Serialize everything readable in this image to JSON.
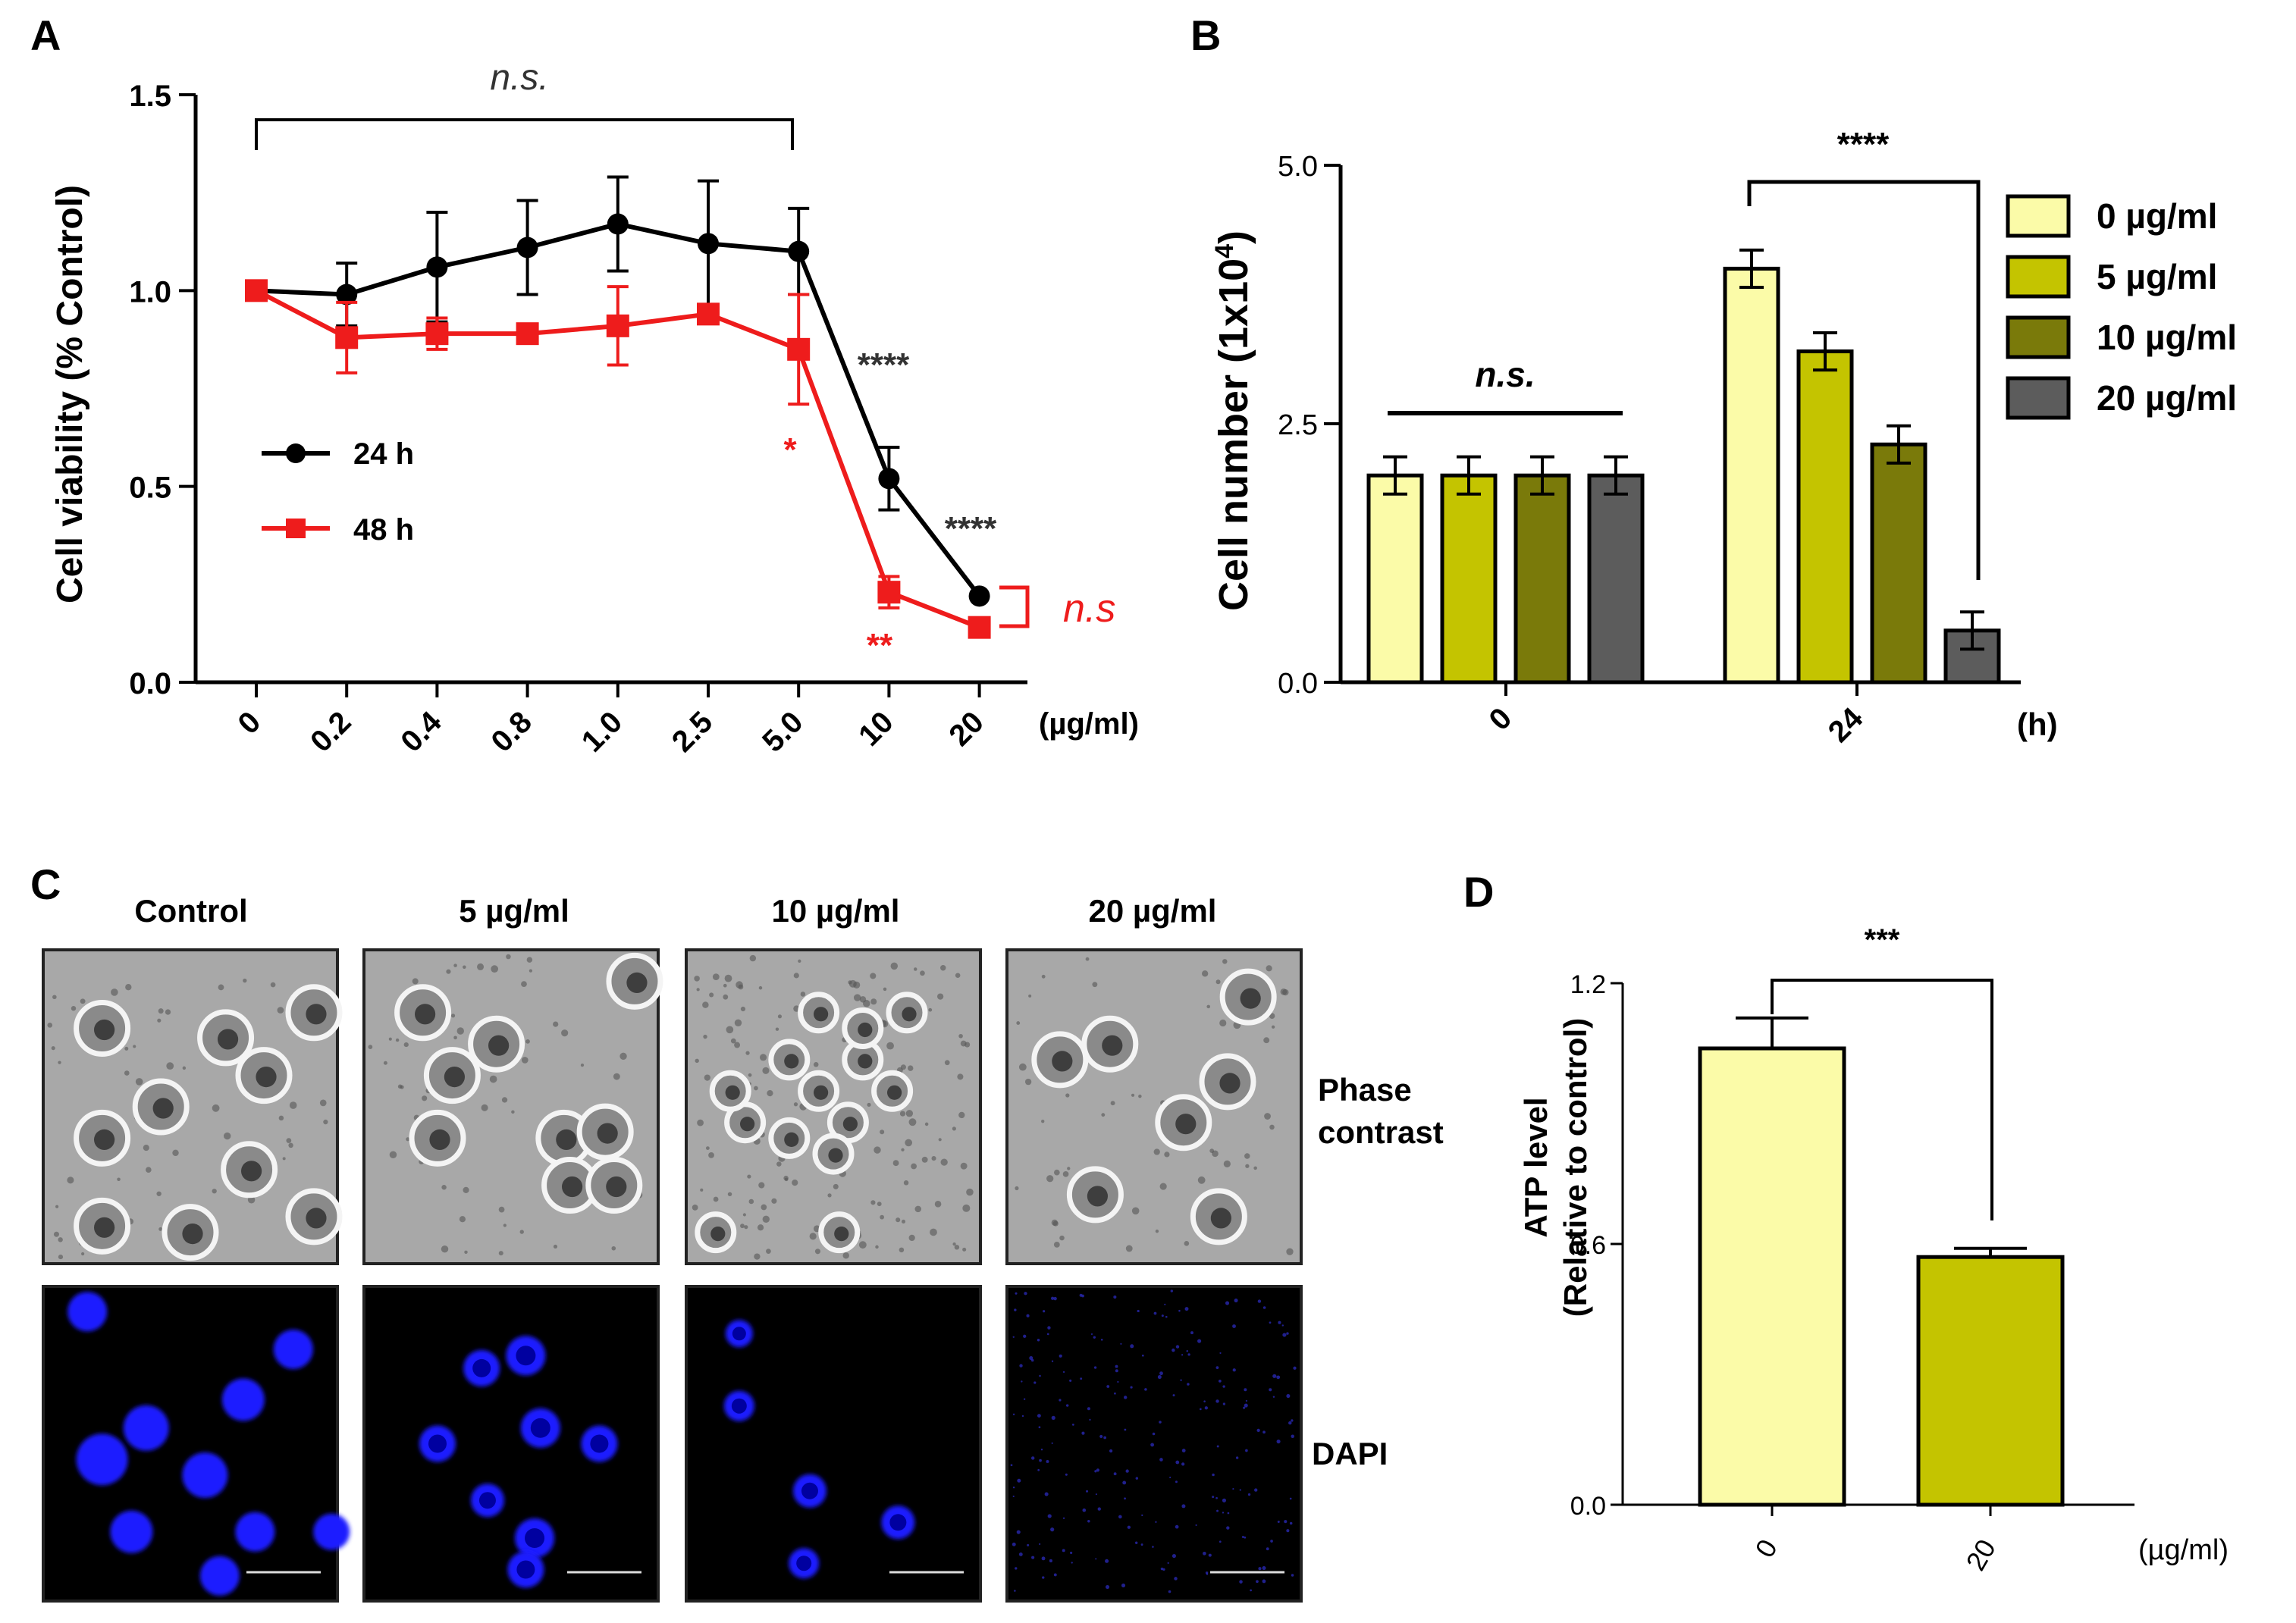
{
  "panels": {
    "A": "A",
    "B": "B",
    "C": "C",
    "D": "D"
  },
  "colors": {
    "black": "#000000",
    "red": "#ee1c1c",
    "c0": "#fbfba8",
    "c5": "#c4c400",
    "c10": "#7a7a0a",
    "c20": "#5c5c5c",
    "dapi": "#1a1aff"
  },
  "chart_data": [
    {
      "panel": "A",
      "type": "line",
      "ylabel": "Cell viability (% Control)",
      "xunit": "(µg/ml)",
      "ylim": [
        0.0,
        1.5
      ],
      "yticks": [
        "0.0",
        "0.5",
        "1.0",
        "1.5"
      ],
      "categories": [
        "0",
        "0.2",
        "0.4",
        "0.8",
        "1.0",
        "2.5",
        "5.0",
        "10",
        "20"
      ],
      "series": [
        {
          "name": "24 h",
          "color": "#000000",
          "marker": "circle",
          "values": [
            1.0,
            0.99,
            1.06,
            1.11,
            1.17,
            1.12,
            1.1,
            0.52,
            0.22
          ],
          "errors": [
            0.02,
            0.08,
            0.14,
            0.12,
            0.12,
            0.16,
            0.11,
            0.08,
            0.02
          ]
        },
        {
          "name": "48 h",
          "color": "#ee1c1c",
          "marker": "square",
          "values": [
            1.0,
            0.88,
            0.89,
            0.89,
            0.91,
            0.94,
            0.85,
            0.23,
            0.14
          ],
          "errors": [
            0.02,
            0.09,
            0.04,
            0.02,
            0.1,
            0.02,
            0.14,
            0.04,
            0.02
          ]
        }
      ],
      "annotations": {
        "ns_top": "n.s.",
        "star24_10": "****",
        "star24_20": "****",
        "star48_5": "*",
        "star48_10": "**",
        "ns_right": "n.s"
      }
    },
    {
      "panel": "B",
      "type": "bar",
      "ylabel_main": "Cell number (1x10",
      "ylabel_sup": "4",
      "ylabel_close": ")",
      "xunit": "(h)",
      "ylim": [
        0.0,
        5.0
      ],
      "yticks": [
        "0.0",
        "2.5",
        "5.0"
      ],
      "categories": [
        "0",
        "24"
      ],
      "series": [
        {
          "name": "0 µg/ml",
          "color": "#fbfba8",
          "values": [
            2.0,
            4.0
          ],
          "errors": [
            0.18,
            0.18
          ]
        },
        {
          "name": "5 µg/ml",
          "color": "#c4c400",
          "values": [
            2.0,
            3.2
          ],
          "errors": [
            0.18,
            0.18
          ]
        },
        {
          "name": "10 µg/ml",
          "color": "#7a7a0a",
          "values": [
            2.0,
            2.3
          ],
          "errors": [
            0.18,
            0.18
          ]
        },
        {
          "name": "20 µg/ml",
          "color": "#5c5c5c",
          "values": [
            2.0,
            0.5
          ],
          "errors": [
            0.18,
            0.18
          ]
        }
      ],
      "annotations": {
        "ns": "n.s.",
        "sig": "****"
      }
    },
    {
      "panel": "D",
      "type": "bar",
      "ylabel_line1": "ATP level",
      "ylabel_line2": "(Relative to control)",
      "xunit": "(µg/ml)",
      "ylim": [
        0.0,
        1.2
      ],
      "yticks": [
        "0.0",
        "0.6",
        "1.2"
      ],
      "categories": [
        "0",
        "20"
      ],
      "values": [
        1.05,
        0.57
      ],
      "errors": [
        0.07,
        0.02
      ],
      "colors": [
        "#fbfba8",
        "#c4c400"
      ],
      "annotations": {
        "sig": "***"
      }
    }
  ],
  "panelC": {
    "columns": [
      "Control",
      "5 µg/ml",
      "10 µg/ml",
      "20 µg/ml"
    ],
    "rows": [
      "Phase contrast",
      "DAPI"
    ],
    "row1_line1": "Phase",
    "row1_line2": "contrast"
  }
}
